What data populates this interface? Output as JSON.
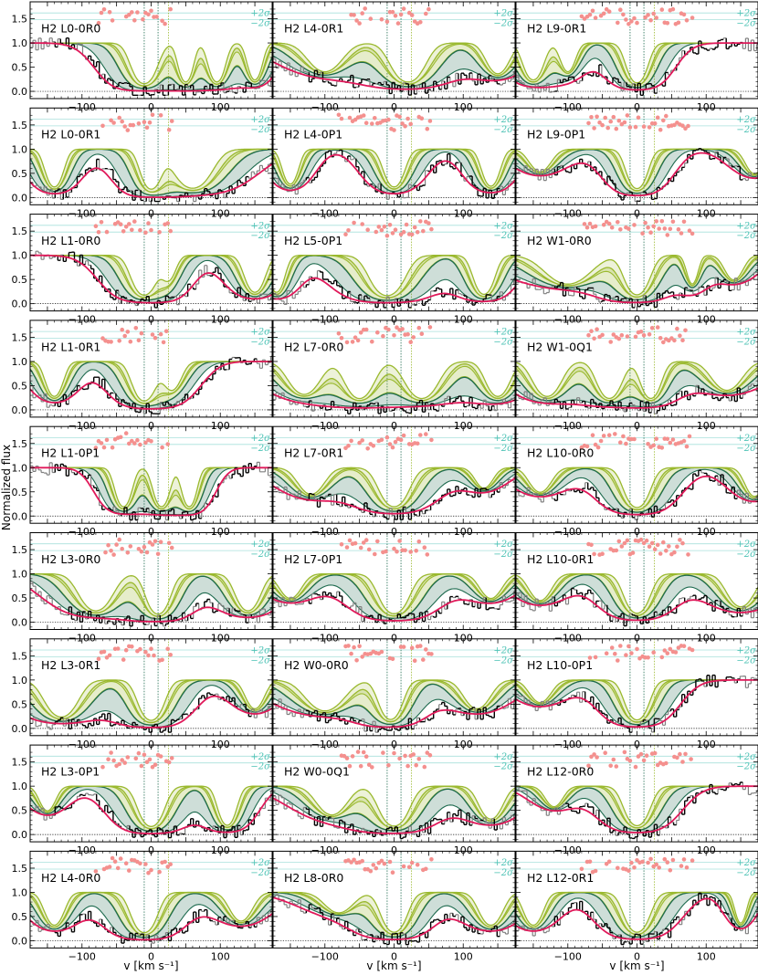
{
  "figure": {
    "ylabel": "Normalized flux",
    "xlabel": "v [km s⁻¹]"
  },
  "chart_data": {
    "type": "line",
    "layout": {
      "rows": 9,
      "cols": 3
    },
    "xlim": [
      -175,
      175
    ],
    "ylim": [
      -0.15,
      1.85
    ],
    "xticks": [
      -100,
      0,
      100
    ],
    "yticks": [
      0.0,
      0.5,
      1.0,
      1.5
    ],
    "ytick_labels": [
      "0.0",
      "0.5",
      "1.0",
      "1.5"
    ],
    "xtick_labels": [
      "−100",
      "0",
      "100"
    ],
    "component_velocities": [
      -10,
      10,
      25
    ],
    "sigma_labels": {
      "plus": "+2σ",
      "minus": "−2σ"
    },
    "sigma_levels": [
      1.62,
      1.48
    ],
    "series_styles": {
      "data_fitted": "#000000",
      "data_unfitted": "#808080",
      "total_model": "#e0195a",
      "residuals": "#f4908e",
      "components_dark": "#1e6b4f",
      "components_light": "#9ab92e"
    },
    "panels": [
      {
        "title": "H2 L0-0R0",
        "col": 0,
        "lines": [
          {
            "v": -10,
            "w": 30,
            "d": 0.99
          },
          {
            "v": 50,
            "w": 18,
            "d": 0.95
          },
          {
            "v": 95,
            "w": 20,
            "d": 0.95
          },
          {
            "v": 150,
            "w": 18,
            "d": 0.9
          }
        ]
      },
      {
        "title": "H2 L4-0R1",
        "col": 1,
        "lines": [
          {
            "v": -100,
            "w": 45,
            "d": 0.7
          },
          {
            "v": 20,
            "w": 40,
            "d": 0.95
          },
          {
            "v": 150,
            "w": 30,
            "d": 0.75
          }
        ]
      },
      {
        "title": "H2 L9-0R1",
        "col": 2,
        "lines": [
          {
            "v": -150,
            "w": 25,
            "d": 0.9
          },
          {
            "v": -100,
            "w": 20,
            "d": 0.7
          },
          {
            "v": 0,
            "w": 25,
            "d": 0.97
          }
        ]
      },
      {
        "title": "H2 L0-0R1",
        "col": 0,
        "lines": [
          {
            "v": -140,
            "w": 22,
            "d": 0.92
          },
          {
            "v": 0,
            "w": 25,
            "d": 0.97
          },
          {
            "v": 60,
            "w": 45,
            "d": 0.95
          }
        ]
      },
      {
        "title": "H2 L4-0P1",
        "col": 1,
        "lines": [
          {
            "v": -150,
            "w": 20,
            "d": 0.85
          },
          {
            "v": 0,
            "w": 25,
            "d": 0.92
          },
          {
            "v": 140,
            "w": 22,
            "d": 0.9
          }
        ]
      },
      {
        "title": "H2 L9-0P1",
        "col": 2,
        "lines": [
          {
            "v": -140,
            "w": 30,
            "d": 0.55
          },
          {
            "v": 0,
            "w": 25,
            "d": 0.96
          },
          {
            "v": 170,
            "w": 25,
            "d": 0.6
          }
        ]
      },
      {
        "title": "H2 L1-0R0",
        "col": 0,
        "lines": [
          {
            "v": -10,
            "w": 30,
            "d": 0.97
          },
          {
            "v": 25,
            "w": 20,
            "d": 0.6
          },
          {
            "v": 150,
            "w": 25,
            "d": 0.9
          }
        ]
      },
      {
        "title": "H2 L5-0P1",
        "col": 1,
        "lines": [
          {
            "v": -170,
            "w": 20,
            "d": 0.9
          },
          {
            "v": -10,
            "w": 40,
            "d": 0.98
          },
          {
            "v": 130,
            "w": 25,
            "d": 0.95
          }
        ]
      },
      {
        "title": "H2 W1-0R0",
        "col": 2,
        "lines": [
          {
            "v": -100,
            "w": 60,
            "d": 0.7
          },
          {
            "v": 0,
            "w": 30,
            "d": 0.96
          },
          {
            "v": 80,
            "w": 15,
            "d": 0.7
          },
          {
            "v": 140,
            "w": 25,
            "d": 0.6
          }
        ]
      },
      {
        "title": "H2 L1-0R1",
        "col": 0,
        "lines": [
          {
            "v": -140,
            "w": 22,
            "d": 0.85
          },
          {
            "v": -10,
            "w": 28,
            "d": 0.96
          },
          {
            "v": 30,
            "w": 25,
            "d": 0.7
          }
        ]
      },
      {
        "title": "H2 L7-0R0",
        "col": 1,
        "lines": [
          {
            "v": -130,
            "w": 40,
            "d": 0.8
          },
          {
            "v": -50,
            "w": 35,
            "d": 0.9
          },
          {
            "v": 40,
            "w": 40,
            "d": 0.9
          },
          {
            "v": 150,
            "w": 30,
            "d": 0.85
          }
        ]
      },
      {
        "title": "H2 W1-0Q1",
        "col": 2,
        "lines": [
          {
            "v": -130,
            "w": 35,
            "d": 0.85
          },
          {
            "v": -40,
            "w": 30,
            "d": 0.9
          },
          {
            "v": 20,
            "w": 25,
            "d": 0.9
          },
          {
            "v": 130,
            "w": 40,
            "d": 0.7
          }
        ]
      },
      {
        "title": "H2 L1-0P1",
        "col": 0,
        "lines": [
          {
            "v": -40,
            "w": 20,
            "d": 0.95
          },
          {
            "v": 15,
            "w": 20,
            "d": 0.95
          },
          {
            "v": 55,
            "w": 18,
            "d": 0.95
          }
        ]
      },
      {
        "title": "H2 L7-0R1",
        "col": 1,
        "lines": [
          {
            "v": -120,
            "w": 35,
            "d": 0.65
          },
          {
            "v": 0,
            "w": 35,
            "d": 0.95
          },
          {
            "v": 130,
            "w": 25,
            "d": 0.5
          }
        ]
      },
      {
        "title": "H2 L10-0R0",
        "col": 2,
        "lines": [
          {
            "v": -140,
            "w": 30,
            "d": 0.6
          },
          {
            "v": 0,
            "w": 30,
            "d": 0.97
          },
          {
            "v": 170,
            "w": 25,
            "d": 0.7
          }
        ]
      },
      {
        "title": "H2 L3-0R0",
        "col": 0,
        "lines": [
          {
            "v": -80,
            "w": 40,
            "d": 0.9
          },
          {
            "v": 10,
            "w": 28,
            "d": 0.98
          },
          {
            "v": 140,
            "w": 30,
            "d": 0.9
          }
        ]
      },
      {
        "title": "H2 L7-0P1",
        "col": 1,
        "lines": [
          {
            "v": -150,
            "w": 30,
            "d": 0.6
          },
          {
            "v": 0,
            "w": 35,
            "d": 0.97
          },
          {
            "v": 140,
            "w": 30,
            "d": 0.6
          }
        ]
      },
      {
        "title": "H2 L10-0R1",
        "col": 2,
        "lines": [
          {
            "v": -140,
            "w": 30,
            "d": 0.65
          },
          {
            "v": 0,
            "w": 30,
            "d": 0.96
          },
          {
            "v": 150,
            "w": 35,
            "d": 0.8
          }
        ]
      },
      {
        "title": "H2 L3-0R1",
        "col": 0,
        "lines": [
          {
            "v": -130,
            "w": 40,
            "d": 0.9
          },
          {
            "v": 0,
            "w": 30,
            "d": 0.98
          },
          {
            "v": 150,
            "w": 25,
            "d": 0.7
          }
        ]
      },
      {
        "title": "H2 W0-0R0",
        "col": 1,
        "lines": [
          {
            "v": -100,
            "w": 50,
            "d": 0.75
          },
          {
            "v": -5,
            "w": 28,
            "d": 0.96
          },
          {
            "v": 120,
            "w": 35,
            "d": 0.7
          }
        ]
      },
      {
        "title": "H2 L10-0P1",
        "col": 2,
        "lines": [
          {
            "v": -140,
            "w": 30,
            "d": 0.55
          },
          {
            "v": 0,
            "w": 28,
            "d": 0.97
          }
        ]
      },
      {
        "title": "H2 L3-0P1",
        "col": 0,
        "lines": [
          {
            "v": -150,
            "w": 22,
            "d": 0.6
          },
          {
            "v": 0,
            "w": 30,
            "d": 0.98
          },
          {
            "v": 110,
            "w": 22,
            "d": 0.95
          }
        ]
      },
      {
        "title": "H2 W0-0Q1",
        "col": 1,
        "lines": [
          {
            "v": -90,
            "w": 40,
            "d": 0.7
          },
          {
            "v": 0,
            "w": 35,
            "d": 0.97
          },
          {
            "v": 140,
            "w": 30,
            "d": 0.8
          }
        ]
      },
      {
        "title": "H2 L12-0R0",
        "col": 2,
        "lines": [
          {
            "v": -120,
            "w": 25,
            "d": 0.5
          },
          {
            "v": 0,
            "w": 30,
            "d": 0.96
          }
        ]
      },
      {
        "title": "H2 L4-0R0",
        "col": 0,
        "lines": [
          {
            "v": -140,
            "w": 25,
            "d": 0.8
          },
          {
            "v": -10,
            "w": 30,
            "d": 0.98
          },
          {
            "v": 130,
            "w": 30,
            "d": 0.7
          }
        ]
      },
      {
        "title": "H2 L8-0R0",
        "col": 1,
        "lines": [
          {
            "v": -80,
            "w": 40,
            "d": 0.5
          },
          {
            "v": 0,
            "w": 30,
            "d": 0.97
          },
          {
            "v": 140,
            "w": 30,
            "d": 0.8
          }
        ]
      },
      {
        "title": "H2 L12-0R1",
        "col": 2,
        "lines": [
          {
            "v": -150,
            "w": 25,
            "d": 0.8
          },
          {
            "v": 0,
            "w": 30,
            "d": 0.97
          },
          {
            "v": 150,
            "w": 15,
            "d": 0.75
          }
        ]
      }
    ]
  }
}
